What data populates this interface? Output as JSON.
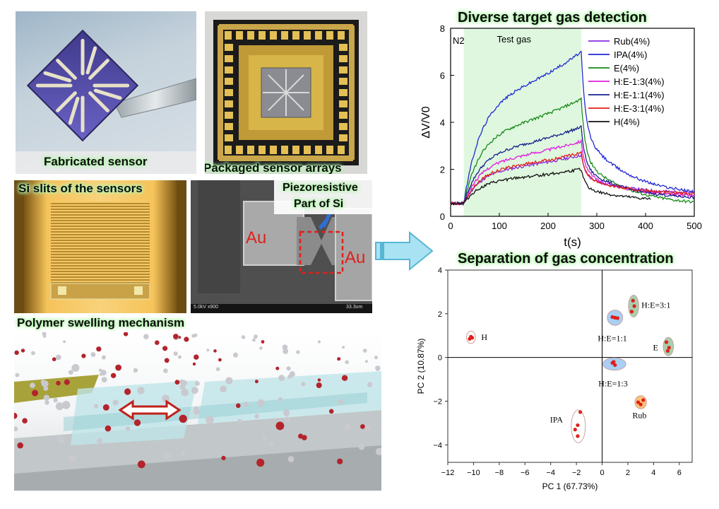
{
  "panels": {
    "fabricated": {
      "caption": "Fabricated sensor"
    },
    "packaged": {
      "caption": "Packaged sensor arrays"
    },
    "slits": {
      "caption": "Si slits of the sensors"
    },
    "sem": {
      "label_left": "Au",
      "label_right": "Au",
      "piezo_line1": "Piezoresistive",
      "piezo_line2": "Part of Si",
      "scale_left": "5.0kV x900",
      "scale_right": "33.3um"
    },
    "polymer": {
      "caption": "Polymer swelling mechanism"
    }
  },
  "arrow": {
    "icon": "right-arrow-icon",
    "color": "#a9e3f3"
  },
  "charts": [
    {
      "title": "Diverse target gas detection",
      "type": "line",
      "xlabel": "t(s)",
      "ylabel": "ΔV/V0",
      "xlim": [
        0,
        500
      ],
      "ylim": [
        0,
        8
      ],
      "xticks": [
        0,
        100,
        200,
        300,
        400,
        500
      ],
      "yticks": [
        0,
        2,
        4,
        6,
        8
      ],
      "annotations": {
        "n2": "N2",
        "test_gas": "Test gas"
      },
      "test_gas_window": [
        27,
        268
      ],
      "series": [
        {
          "name": "Rub(4%)",
          "color": "#8a2be2",
          "peak": 2.6,
          "end": 0.95,
          "tend": 500
        },
        {
          "name": "IPA(4%)",
          "color": "#1f2ad1",
          "peak": 7.0,
          "end": 0.85,
          "tend": 500
        },
        {
          "name": "E(4%)",
          "color": "#1a8a1a",
          "peak": 5.0,
          "end": 0.45,
          "tend": 500
        },
        {
          "name": "H:E-1:3(4%)",
          "color": "#e01ee0",
          "peak": 3.2,
          "end": 0.8,
          "tend": 500
        },
        {
          "name": "H:E-1:1(4%)",
          "color": "#14208c",
          "peak": 3.8,
          "end": 0.7,
          "tend": 500
        },
        {
          "name": "H:E-3:1(4%)",
          "color": "#e0201a",
          "peak": 2.7,
          "end": 0.9,
          "tend": 500
        },
        {
          "name": "H(4%)",
          "color": "#111111",
          "peak": 2.0,
          "end": 0.6,
          "tend": 410
        }
      ]
    },
    {
      "title": "Separation of gas concentration",
      "type": "scatter",
      "xlabel": "PC 1 (67.73%)",
      "ylabel": "PC 2 (10.87%)",
      "xlim": [
        -12,
        7
      ],
      "ylim": [
        -4.8,
        4
      ],
      "xticks": [
        -12,
        -10,
        -8,
        -6,
        -4,
        -2,
        0,
        2,
        4,
        6
      ],
      "yticks": [
        -4,
        -2,
        0,
        2,
        4
      ],
      "clusters": [
        {
          "label": "H",
          "fill": "#ffffff",
          "points": [
            [
              -10.2,
              0.95
            ],
            [
              -10.1,
              0.9
            ],
            [
              -10.3,
              0.85
            ]
          ],
          "ellipse": [
            -10.2,
            0.92,
            0.35,
            0.28
          ]
        },
        {
          "label": "H:E=1:1",
          "fill": "#a9cff5",
          "points": [
            [
              0.8,
              1.85
            ],
            [
              1.0,
              1.82
            ],
            [
              1.2,
              1.8
            ]
          ],
          "ellipse": [
            1.0,
            1.82,
            0.6,
            0.35
          ]
        },
        {
          "label": "H:E=3:1",
          "fill": "#a7cfae",
          "points": [
            [
              2.3,
              2.1
            ],
            [
              2.5,
              2.35
            ],
            [
              2.4,
              2.6
            ]
          ],
          "ellipse": [
            2.45,
            2.35,
            0.4,
            0.5
          ]
        },
        {
          "label": "E",
          "fill": "#a7cfae",
          "points": [
            [
              5.0,
              0.7
            ],
            [
              5.2,
              0.45
            ],
            [
              5.1,
              0.3
            ]
          ],
          "ellipse": [
            5.15,
            0.5,
            0.4,
            0.42
          ]
        },
        {
          "label": "H:E=1:3",
          "fill": "#a9cff5",
          "points": [
            [
              0.8,
              -0.25
            ],
            [
              1.0,
              -0.35
            ],
            [
              0.9,
              -0.2
            ]
          ],
          "ellipse": [
            0.95,
            -0.3,
            0.9,
            0.28
          ]
        },
        {
          "label": "Rub",
          "fill": "#f9c27a",
          "points": [
            [
              2.8,
              -2.05
            ],
            [
              3.0,
              -2.15
            ],
            [
              3.2,
              -1.95
            ]
          ],
          "ellipse": [
            3.0,
            -2.05,
            0.45,
            0.3
          ]
        },
        {
          "label": "IPA",
          "fill": "#ffffff",
          "points": [
            [
              -1.7,
              -2.5
            ],
            [
              -1.9,
              -3.1
            ],
            [
              -2.1,
              -3.3
            ],
            [
              -1.9,
              -3.6
            ]
          ],
          "ellipse": [
            -1.85,
            -3.15,
            0.55,
            0.75
          ]
        }
      ]
    }
  ]
}
